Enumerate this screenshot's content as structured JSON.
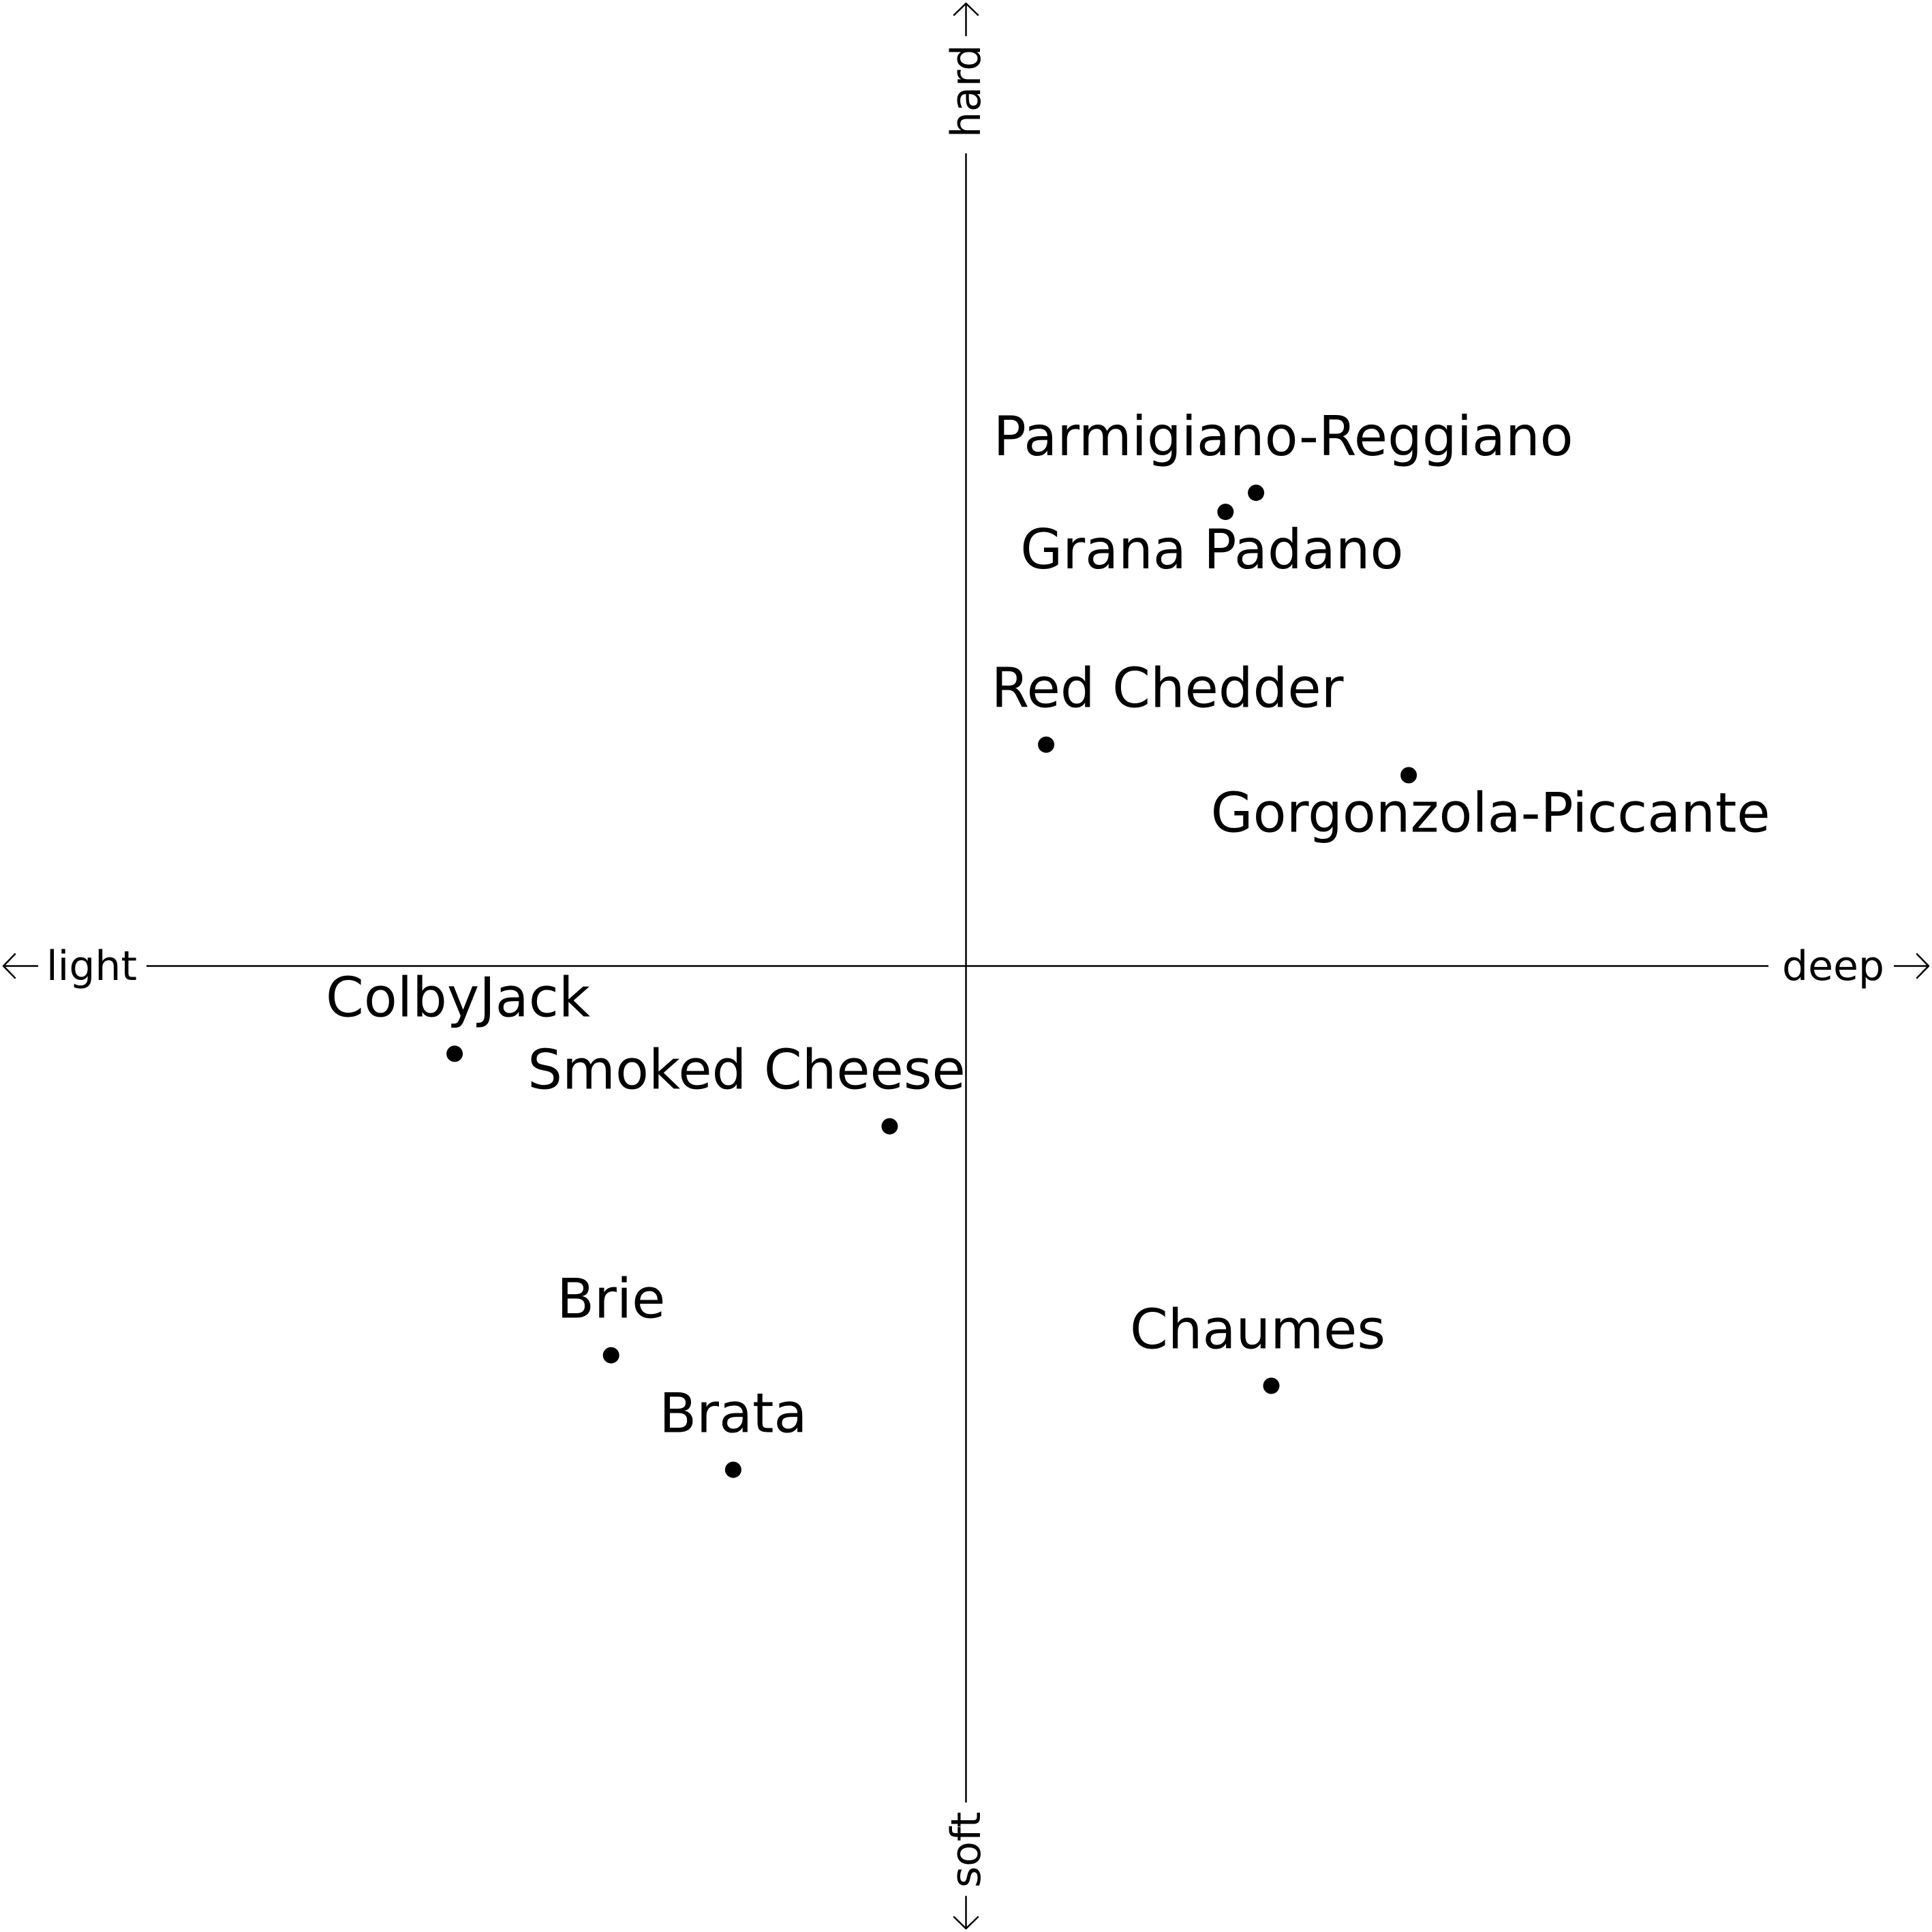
{
  "chart_data": {
    "type": "scatter",
    "title": "",
    "xlim": [
      -1,
      1
    ],
    "ylim": [
      -1,
      1
    ],
    "grid": false,
    "axes": {
      "x_negative_label": "light",
      "x_positive_label": "deep",
      "y_positive_label": "hard",
      "y_negative_label": "soft"
    },
    "points": [
      {
        "label": "Parmigiano-Reggiano",
        "x": 0.38,
        "y": 0.62
      },
      {
        "label": "Grana Padano",
        "x": 0.34,
        "y": 0.595
      },
      {
        "label": "Red Chedder",
        "x": 0.105,
        "y": 0.29
      },
      {
        "label": "Gorgonzola-Piccante",
        "x": 0.58,
        "y": 0.25
      },
      {
        "label": "ColbyJack",
        "x": -0.67,
        "y": -0.115
      },
      {
        "label": "Smoked Cheese",
        "x": -0.1,
        "y": -0.21
      },
      {
        "label": "Brie",
        "x": -0.465,
        "y": -0.51
      },
      {
        "label": "Brata",
        "x": -0.305,
        "y": -0.66
      },
      {
        "label": "Chaumes",
        "x": 0.4,
        "y": -0.55
      }
    ]
  }
}
